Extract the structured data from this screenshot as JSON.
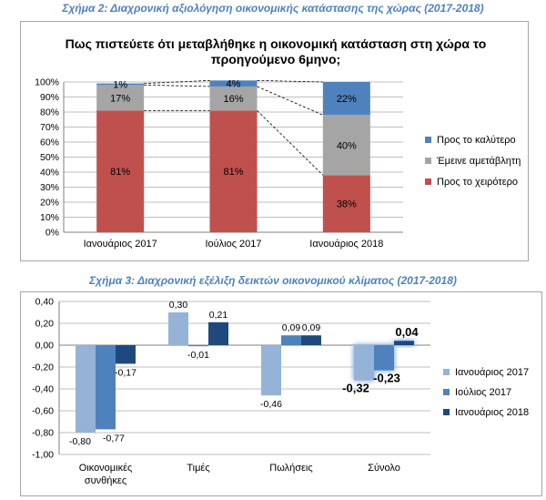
{
  "captions": {
    "fig2": "Σχήμα 2: Διαχρονική αξιολόγηση οικονομικής κατάστασης της χώρας (2017-2018)",
    "fig3": "Σχήμα 3: Διαχρονική εξέλιξη δεικτών οικονομικού κλίματος (2017-2018)"
  },
  "chart_data": [
    {
      "type": "bar",
      "stacked": "percent",
      "title": [
        "Πως πιστεύετε ότι μεταβλήθηκε η οικονομική κατάσταση στη χώρα το",
        "προηγούμενο 6μηνο;"
      ],
      "categories": [
        "Ιανουάριος 2017",
        "Ιούλιος 2017",
        "Ιανουάριος 2018"
      ],
      "series": [
        {
          "name": "Προς το χειρότερο",
          "values": [
            81,
            81,
            38
          ],
          "labels": [
            "81%",
            "81%",
            "38%"
          ],
          "color": "#c0504d"
        },
        {
          "name": "Έμεινε αμετάβλητη",
          "values": [
            17,
            16,
            40
          ],
          "labels": [
            "17%",
            "16%",
            "40%"
          ],
          "color": "#a5a5a5"
        },
        {
          "name": "Προς το καλύτερο",
          "values": [
            1,
            4,
            22
          ],
          "labels": [
            "1%",
            "4%",
            "22%"
          ],
          "color": "#4f81bd"
        }
      ],
      "yticks": [
        "0%",
        "10%",
        "20%",
        "30%",
        "40%",
        "50%",
        "60%",
        "70%",
        "80%",
        "90%",
        "100%"
      ],
      "ylim": [
        0,
        100
      ],
      "series_lines": true,
      "legend": "right"
    },
    {
      "type": "bar",
      "title": "",
      "categories": [
        [
          "Οικονομικές",
          "συνθήκες"
        ],
        [
          "Τιμές"
        ],
        [
          "Πωλήσεις"
        ],
        [
          "Σύνολο"
        ]
      ],
      "series": [
        {
          "name": "Ιανουάριος 2017",
          "values": [
            -0.8,
            0.3,
            -0.46,
            -0.32
          ],
          "labels": [
            "-0,80",
            "0,30",
            "-0,46",
            "-0,32"
          ],
          "color": "#95b3d7"
        },
        {
          "name": "Ιούλιος 2017",
          "values": [
            -0.77,
            -0.01,
            0.09,
            -0.23
          ],
          "labels": [
            "-0,77",
            "-0,01",
            "0,09",
            "-0,23"
          ],
          "color": "#4f81bd"
        },
        {
          "name": "Ιανουάριος 2018",
          "values": [
            -0.17,
            0.21,
            0.09,
            0.04
          ],
          "labels": [
            "-0,17",
            "0,21",
            "0,09",
            "0,04"
          ],
          "color": "#1f497d"
        }
      ],
      "yticks": [
        "-1,00",
        "-0,80",
        "-0,60",
        "-0,40",
        "-0,20",
        "0,00",
        "0,20",
        "0,40"
      ],
      "ylim": [
        -1.0,
        0.4
      ],
      "highlight_category": "Σύνολο",
      "legend": "right"
    }
  ]
}
